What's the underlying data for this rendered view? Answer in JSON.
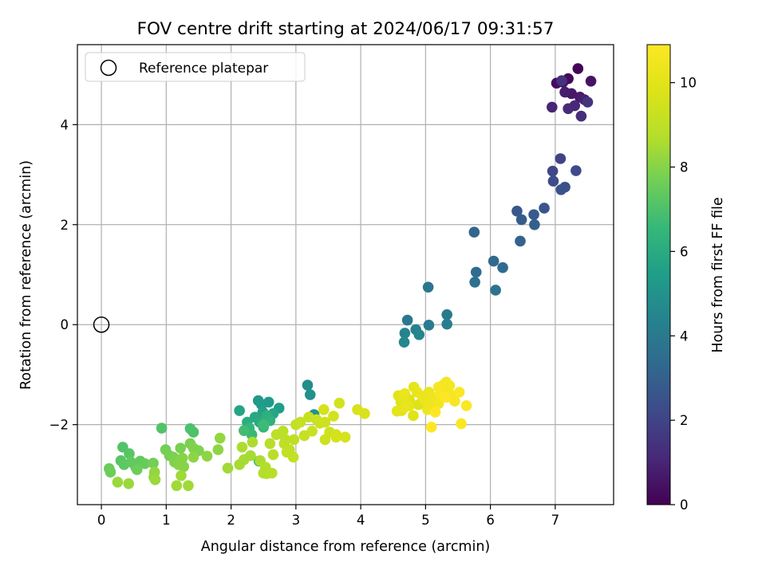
{
  "chart_data": {
    "type": "scatter",
    "title": "FOV centre drift starting at 2024/06/17 09:31:57",
    "xlabel": "Angular distance from reference (arcmin)",
    "ylabel": "Rotation from reference (arcmin)",
    "xlim": [
      -0.37,
      7.9
    ],
    "ylim": [
      -3.6,
      5.6
    ],
    "x_ticks": [
      0,
      1,
      2,
      3,
      4,
      5,
      6,
      7
    ],
    "y_ticks": [
      -2,
      0,
      2,
      4
    ],
    "x_tick_labels": [
      "0",
      "1",
      "2",
      "3",
      "4",
      "5",
      "6",
      "7"
    ],
    "y_tick_labels": [
      "−2",
      "0",
      "2",
      "4"
    ],
    "grid": true,
    "legend": {
      "placement": "top-left",
      "entries": [
        "Reference platepar"
      ]
    },
    "reference": {
      "x": 0,
      "y": 0
    },
    "colorbar": {
      "label": "Hours from first FF file",
      "colormap": "viridis",
      "range": [
        0,
        10.9
      ],
      "ticks": [
        0,
        2,
        4,
        6,
        8,
        10
      ],
      "tick_labels": [
        "0",
        "2",
        "4",
        "6",
        "8",
        "10"
      ]
    },
    "points": [
      [
        7.35,
        5.12,
        0.1
      ],
      [
        7.2,
        4.92,
        0.2
      ],
      [
        7.02,
        4.83,
        0.3
      ],
      [
        7.12,
        4.85,
        0.4
      ],
      [
        7.55,
        4.87,
        0.5
      ],
      [
        7.25,
        4.62,
        0.6
      ],
      [
        7.38,
        4.55,
        0.7
      ],
      [
        7.15,
        4.65,
        0.8
      ],
      [
        7.45,
        4.5,
        0.9
      ],
      [
        6.95,
        4.35,
        1.0
      ],
      [
        7.3,
        4.38,
        1.1
      ],
      [
        7.2,
        4.32,
        1.2
      ],
      [
        7.4,
        4.17,
        1.3
      ],
      [
        7.1,
        4.88,
        1.4
      ],
      [
        7.5,
        4.45,
        1.5
      ],
      [
        7.08,
        3.32,
        2.0
      ],
      [
        6.96,
        3.07,
        2.1
      ],
      [
        7.32,
        3.08,
        2.2
      ],
      [
        6.97,
        2.87,
        2.3
      ],
      [
        7.15,
        2.75,
        2.4
      ],
      [
        7.09,
        2.7,
        2.5
      ],
      [
        6.83,
        2.33,
        2.6
      ],
      [
        6.41,
        2.27,
        2.7
      ],
      [
        6.67,
        2.2,
        2.8
      ],
      [
        6.48,
        2.1,
        2.9
      ],
      [
        6.68,
        2.0,
        3.0
      ],
      [
        6.46,
        1.67,
        3.1
      ],
      [
        5.75,
        1.85,
        3.2
      ],
      [
        6.05,
        1.27,
        3.3
      ],
      [
        6.19,
        1.14,
        3.4
      ],
      [
        5.78,
        1.05,
        3.5
      ],
      [
        5.76,
        0.85,
        3.6
      ],
      [
        6.08,
        0.69,
        3.7
      ],
      [
        5.04,
        0.75,
        3.8
      ],
      [
        4.72,
        0.09,
        3.9
      ],
      [
        5.33,
        0.2,
        4.0
      ],
      [
        5.05,
        -0.01,
        4.1
      ],
      [
        5.33,
        0.01,
        4.2
      ],
      [
        4.85,
        -0.1,
        4.3
      ],
      [
        4.68,
        -0.17,
        4.4
      ],
      [
        4.9,
        -0.2,
        4.5
      ],
      [
        4.67,
        -0.35,
        4.6
      ],
      [
        3.18,
        -1.21,
        4.8
      ],
      [
        3.22,
        -1.4,
        4.9
      ],
      [
        3.28,
        -1.8,
        5.0
      ],
      [
        2.42,
        -1.52,
        5.2
      ],
      [
        2.58,
        -1.55,
        5.3
      ],
      [
        2.47,
        -1.6,
        5.4
      ],
      [
        2.74,
        -1.67,
        5.5
      ],
      [
        2.49,
        -1.75,
        5.6
      ],
      [
        2.13,
        -1.72,
        5.7
      ],
      [
        2.65,
        -1.78,
        5.8
      ],
      [
        2.37,
        -1.85,
        5.9
      ],
      [
        2.44,
        -1.95,
        6.0
      ],
      [
        2.25,
        -1.95,
        6.1
      ],
      [
        2.55,
        -1.82,
        6.2
      ],
      [
        2.6,
        -1.92,
        6.3
      ],
      [
        2.5,
        -2.05,
        6.4
      ],
      [
        2.28,
        -2.07,
        6.5
      ],
      [
        2.32,
        -2.2,
        6.6
      ],
      [
        2.5,
        -2.0,
        6.7
      ],
      [
        2.2,
        -2.12,
        6.8
      ],
      [
        2.43,
        -2.73,
        6.9
      ],
      [
        1.37,
        -2.08,
        7.0
      ],
      [
        1.42,
        -2.15,
        7.0
      ],
      [
        0.93,
        -2.07,
        7.1
      ],
      [
        0.33,
        -2.45,
        7.1
      ],
      [
        0.43,
        -2.58,
        7.2
      ],
      [
        0.3,
        -2.72,
        7.2
      ],
      [
        0.35,
        -2.8,
        7.3
      ],
      [
        0.53,
        -2.85,
        7.3
      ],
      [
        0.6,
        -2.73,
        7.4
      ],
      [
        0.46,
        -2.75,
        7.4
      ],
      [
        0.67,
        -2.78,
        7.5
      ],
      [
        0.12,
        -2.88,
        7.5
      ],
      [
        0.14,
        -2.95,
        7.6
      ],
      [
        0.55,
        -2.9,
        7.6
      ],
      [
        0.8,
        -2.77,
        7.7
      ],
      [
        0.99,
        -2.5,
        7.7
      ],
      [
        1.05,
        -2.62,
        7.7
      ],
      [
        1.11,
        -2.65,
        7.8
      ],
      [
        1.22,
        -2.47,
        7.8
      ],
      [
        1.37,
        -2.38,
        7.8
      ],
      [
        1.42,
        -2.47,
        7.9
      ],
      [
        1.5,
        -2.52,
        7.9
      ],
      [
        1.13,
        -2.75,
        7.9
      ],
      [
        1.19,
        -2.8,
        8.0
      ],
      [
        1.25,
        -2.67,
        8.0
      ],
      [
        1.27,
        -2.84,
        8.0
      ],
      [
        1.42,
        -2.65,
        8.1
      ],
      [
        1.63,
        -2.63,
        8.1
      ],
      [
        1.8,
        -2.5,
        8.1
      ],
      [
        1.83,
        -2.27,
        8.2
      ],
      [
        0.82,
        -2.95,
        8.2
      ],
      [
        0.81,
        -3.05,
        8.2
      ],
      [
        0.83,
        -3.1,
        8.3
      ],
      [
        0.25,
        -3.15,
        8.3
      ],
      [
        0.42,
        -3.18,
        8.3
      ],
      [
        1.16,
        -3.22,
        8.4
      ],
      [
        1.34,
        -3.22,
        8.4
      ],
      [
        1.23,
        -3.02,
        8.4
      ],
      [
        1.95,
        -2.87,
        8.4
      ],
      [
        2.13,
        -2.8,
        8.5
      ],
      [
        2.2,
        -2.7,
        8.5
      ],
      [
        2.3,
        -2.62,
        8.5
      ],
      [
        2.33,
        -2.35,
        8.6
      ],
      [
        2.17,
        -2.45,
        8.6
      ],
      [
        2.45,
        -2.72,
        8.6
      ],
      [
        2.53,
        -2.85,
        8.7
      ],
      [
        2.5,
        -2.97,
        8.7
      ],
      [
        2.55,
        -2.98,
        8.7
      ],
      [
        2.63,
        -2.97,
        8.8
      ],
      [
        2.65,
        -2.6,
        8.8
      ],
      [
        2.6,
        -2.38,
        8.8
      ],
      [
        2.7,
        -2.2,
        8.9
      ],
      [
        2.8,
        -2.13,
        8.9
      ],
      [
        2.84,
        -2.3,
        8.9
      ],
      [
        2.82,
        -2.38,
        9.0
      ],
      [
        2.9,
        -2.5,
        9.0
      ],
      [
        2.97,
        -2.3,
        9.0
      ],
      [
        2.86,
        -2.55,
        9.1
      ],
      [
        2.96,
        -2.65,
        9.1
      ],
      [
        3.0,
        -2.0,
        9.1
      ],
      [
        3.07,
        -1.95,
        9.2
      ],
      [
        3.2,
        -1.85,
        9.2
      ],
      [
        3.13,
        -2.22,
        9.2
      ],
      [
        3.25,
        -2.13,
        9.3
      ],
      [
        3.32,
        -1.9,
        9.3
      ],
      [
        3.37,
        -1.97,
        9.3
      ],
      [
        3.45,
        -1.95,
        9.4
      ],
      [
        3.45,
        -2.3,
        9.4
      ],
      [
        3.52,
        -2.15,
        9.4
      ],
      [
        3.62,
        -2.2,
        9.5
      ],
      [
        3.58,
        -1.83,
        9.5
      ],
      [
        3.67,
        -1.57,
        9.5
      ],
      [
        3.43,
        -1.7,
        9.6
      ],
      [
        3.62,
        -2.25,
        9.6
      ],
      [
        3.76,
        -2.25,
        9.6
      ],
      [
        3.95,
        -1.7,
        9.7
      ],
      [
        4.06,
        -1.78,
        9.7
      ],
      [
        4.75,
        -1.5,
        9.8
      ],
      [
        4.89,
        -1.6,
        9.8
      ],
      [
        4.62,
        -1.55,
        9.9
      ],
      [
        4.63,
        -1.72,
        9.9
      ],
      [
        4.81,
        -1.82,
        9.9
      ],
      [
        4.56,
        -1.73,
        10.0
      ],
      [
        4.58,
        -1.42,
        10.0
      ],
      [
        4.67,
        -1.45,
        10.1
      ],
      [
        4.75,
        -1.62,
        10.1
      ],
      [
        4.82,
        -1.25,
        10.1
      ],
      [
        4.68,
        -1.65,
        10.2
      ],
      [
        4.87,
        -1.35,
        10.2
      ],
      [
        4.95,
        -1.43,
        10.3
      ],
      [
        4.99,
        -1.52,
        10.3
      ],
      [
        5.05,
        -1.35,
        10.3
      ],
      [
        5.03,
        -1.7,
        10.4
      ],
      [
        5.13,
        -1.62,
        10.4
      ],
      [
        5.1,
        -1.47,
        10.4
      ],
      [
        5.2,
        -1.58,
        10.5
      ],
      [
        5.25,
        -1.3,
        10.5
      ],
      [
        5.28,
        -1.2,
        10.5
      ],
      [
        5.32,
        -1.15,
        10.6
      ],
      [
        5.37,
        -1.22,
        10.6
      ],
      [
        5.38,
        -1.4,
        10.6
      ],
      [
        5.2,
        -1.25,
        10.7
      ],
      [
        5.22,
        -1.37,
        10.7
      ],
      [
        5.33,
        -1.45,
        10.7
      ],
      [
        5.45,
        -1.53,
        10.7
      ],
      [
        5.52,
        -1.35,
        10.8
      ],
      [
        5.63,
        -1.62,
        10.8
      ],
      [
        5.55,
        -1.98,
        10.8
      ],
      [
        5.09,
        -2.05,
        10.9
      ],
      [
        5.15,
        -1.75,
        10.9
      ],
      [
        5.3,
        -1.45,
        10.9
      ],
      [
        4.68,
        -1.38,
        10.3
      ]
    ]
  }
}
